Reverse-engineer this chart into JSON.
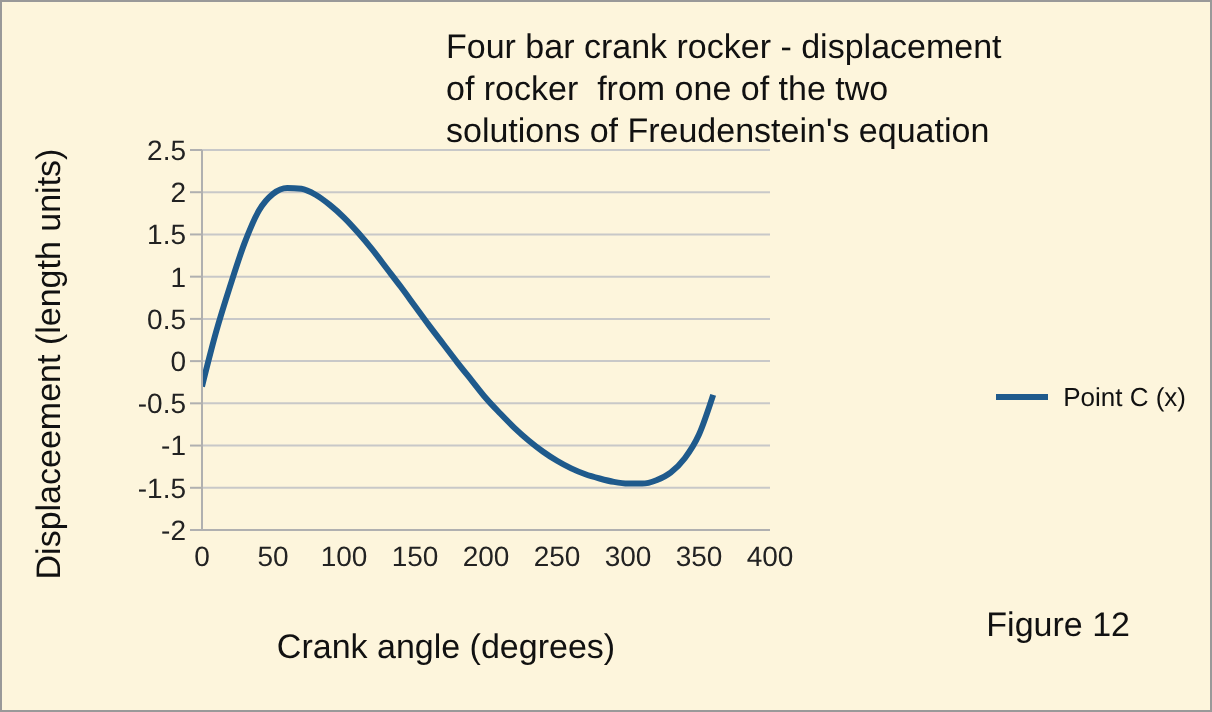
{
  "chart_data": {
    "type": "line",
    "title": "Four bar crank rocker - displacement\nof rocker  from one of the two\nsolutions of Freudenstein's equation",
    "xlabel": "Crank angle (degrees)",
    "ylabel": "Displaceement (length units)",
    "annotations": [
      "Figure 12"
    ],
    "x": [
      0,
      10,
      20,
      30,
      40,
      50,
      60,
      70,
      80,
      90,
      100,
      110,
      120,
      130,
      140,
      150,
      160,
      170,
      180,
      190,
      200,
      210,
      220,
      230,
      240,
      250,
      260,
      270,
      280,
      290,
      300,
      310,
      320,
      330,
      340,
      350,
      360
    ],
    "series": [
      {
        "name": "Point C (x)",
        "color": "#1f5a8c",
        "values": [
          -0.3,
          0.35,
          0.9,
          1.4,
          1.78,
          1.98,
          2.05,
          2.04,
          1.97,
          1.85,
          1.7,
          1.52,
          1.32,
          1.1,
          0.88,
          0.65,
          0.42,
          0.2,
          -0.02,
          -0.23,
          -0.44,
          -0.62,
          -0.79,
          -0.94,
          -1.07,
          -1.18,
          -1.27,
          -1.34,
          -1.39,
          -1.43,
          -1.45,
          -1.45,
          -1.41,
          -1.32,
          -1.15,
          -0.87,
          -0.4
        ]
      }
    ],
    "xlim": [
      0,
      400
    ],
    "xticks": [
      0,
      50,
      100,
      150,
      200,
      250,
      300,
      350,
      400
    ],
    "ylim": [
      -2,
      2.5
    ],
    "yticks": [
      -2,
      -1.5,
      -1,
      -0.5,
      0,
      0.5,
      1,
      1.5,
      2,
      2.5
    ],
    "grid": "y",
    "legend": "right",
    "marker": "none",
    "line_style": "solid"
  }
}
